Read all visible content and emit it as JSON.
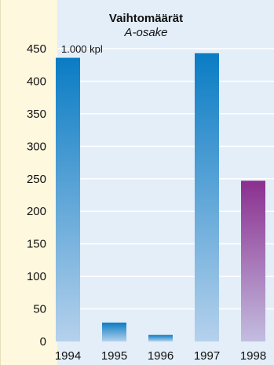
{
  "chart_data": {
    "type": "bar",
    "title": "Vaihtomäärät",
    "subtitle": "A-osake",
    "unit_label": "1.000 kpl",
    "categories": [
      "1994",
      "1995",
      "1996",
      "1997",
      "1998"
    ],
    "values": [
      436,
      29,
      10,
      443,
      247
    ],
    "yticks": [
      0,
      50,
      100,
      150,
      200,
      250,
      300,
      350,
      400,
      450
    ],
    "ylim": [
      0,
      450
    ],
    "grid": true,
    "legend": "none",
    "colors": {
      "bar_top_blue": "#0a7cc4",
      "bar_bottom_blue": "#b5d1ec",
      "bar_top_highlight": "#8b2f8f",
      "bar_bottom_highlight": "#c3bde0",
      "gridline": "#ffffff",
      "plot_background": "#e3eef8",
      "frame_background": "#fdf8de"
    },
    "highlight_category": "1998"
  }
}
